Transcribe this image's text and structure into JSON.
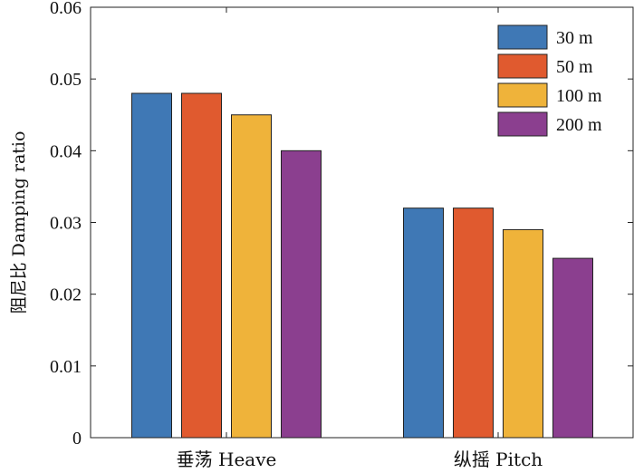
{
  "chart_data": {
    "type": "bar",
    "title": "",
    "xlabel": "",
    "ylabel": "阻尼比 Damping ratio",
    "categories": [
      "垂荡 Heave",
      "纵摇 Pitch"
    ],
    "series": [
      {
        "name": "30 m",
        "color": "#3f78b5",
        "values": [
          0.048,
          0.032
        ]
      },
      {
        "name": "50 m",
        "color": "#e05a2f",
        "values": [
          0.048,
          0.032
        ]
      },
      {
        "name": "100 m",
        "color": "#efb33a",
        "values": [
          0.045,
          0.029
        ]
      },
      {
        "name": "200 m",
        "color": "#8b3f8f",
        "values": [
          0.04,
          0.025
        ]
      }
    ],
    "ylim": [
      0,
      0.06
    ],
    "yticks": [
      "0",
      "0.01",
      "0.02",
      "0.03",
      "0.04",
      "0.05",
      "0.06"
    ],
    "grid": false,
    "legend_position": "top-right"
  }
}
